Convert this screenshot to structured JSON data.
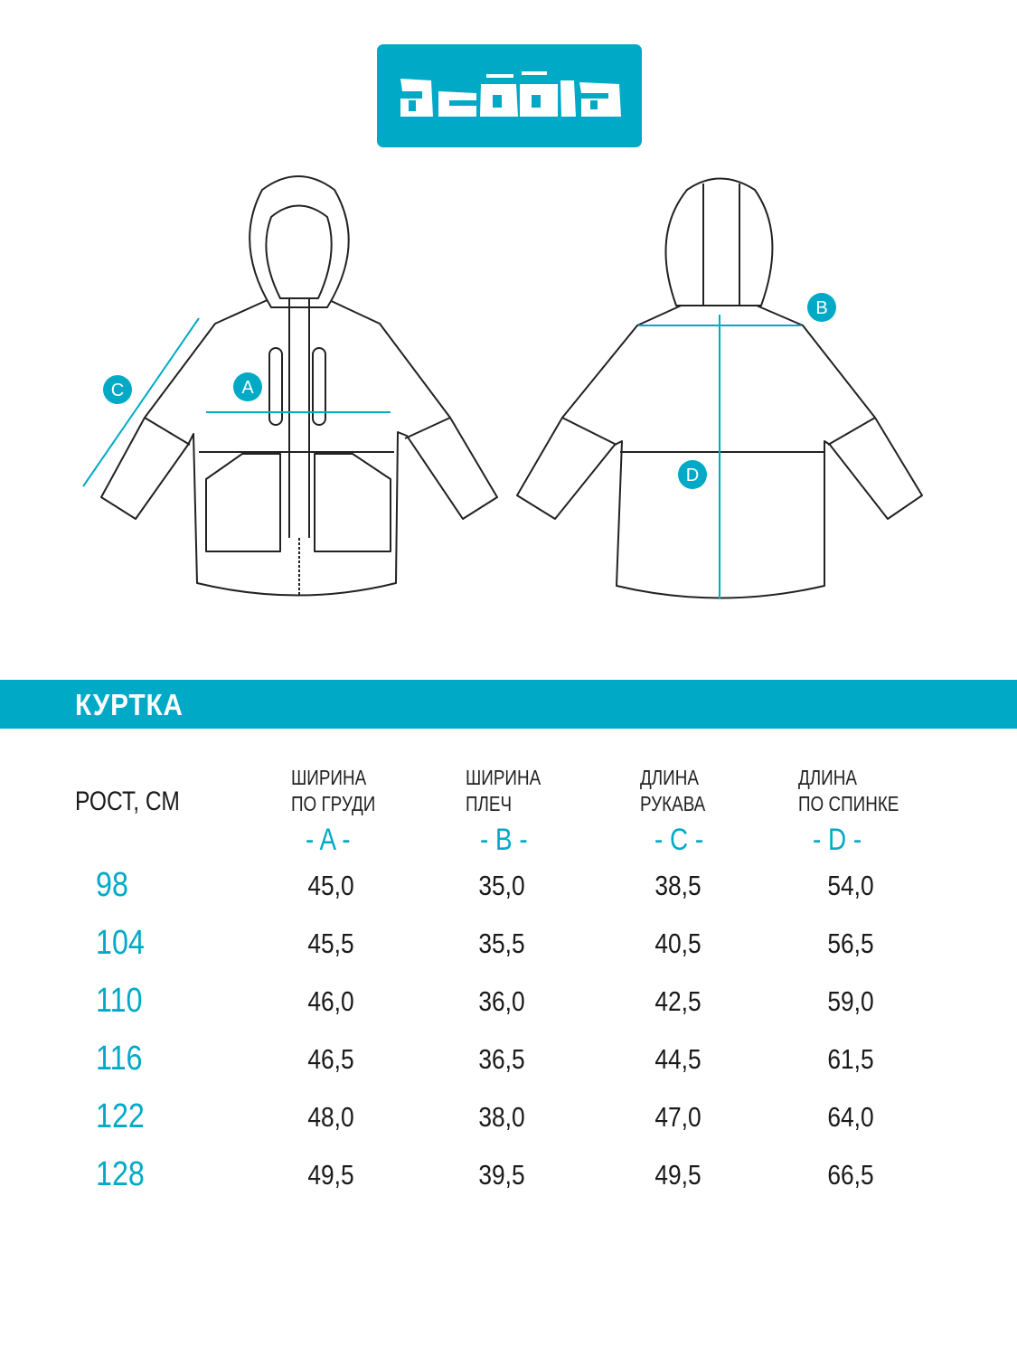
{
  "brand": {
    "logo_text": "acoola",
    "color": "#00aac6"
  },
  "diagram": {
    "labels": [
      "A",
      "B",
      "C",
      "D"
    ]
  },
  "section": {
    "title": "КУРТКА"
  },
  "table": {
    "height_header": "РОСТ, СМ",
    "columns": [
      {
        "line1": "ШИРИНА",
        "line2": "ПО ГРУДИ",
        "letter": "- A -"
      },
      {
        "line1": "ШИРИНА",
        "line2": "ПЛЕЧ",
        "letter": "- B -"
      },
      {
        "line1": "ДЛИНА",
        "line2": "РУКАВА",
        "letter": "- C -"
      },
      {
        "line1": "ДЛИНА",
        "line2": "ПО СПИНКЕ",
        "letter": "- D -"
      }
    ],
    "rows": [
      {
        "height": "98",
        "values": [
          "45,0",
          "35,0",
          "38,5",
          "54,0"
        ]
      },
      {
        "height": "104",
        "values": [
          "45,5",
          "35,5",
          "40,5",
          "56,5"
        ]
      },
      {
        "height": "110",
        "values": [
          "46,0",
          "36,0",
          "42,5",
          "59,0"
        ]
      },
      {
        "height": "116",
        "values": [
          "46,5",
          "36,5",
          "44,5",
          "61,5"
        ]
      },
      {
        "height": "122",
        "values": [
          "48,0",
          "38,0",
          "47,0",
          "64,0"
        ]
      },
      {
        "height": "128",
        "values": [
          "49,5",
          "39,5",
          "49,5",
          "66,5"
        ]
      }
    ]
  }
}
